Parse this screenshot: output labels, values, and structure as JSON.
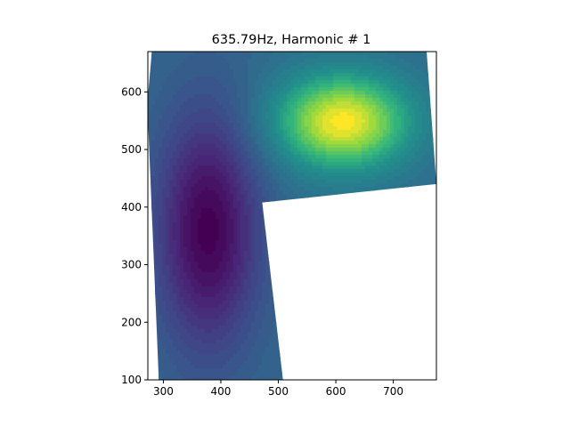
{
  "chart_data": {
    "type": "heatmap",
    "subtype": "filled-contour",
    "title": "635.79Hz, Harmonic # 1",
    "xlabel": "",
    "ylabel": "",
    "xlim": [
      273,
      775
    ],
    "ylim": [
      100,
      670
    ],
    "xticks": [
      300,
      400,
      500,
      600,
      700
    ],
    "yticks": [
      100,
      200,
      300,
      400,
      500,
      600
    ],
    "xtick_labels": [
      "300",
      "400",
      "500",
      "600",
      "700"
    ],
    "ytick_labels": [
      "100",
      "200",
      "300",
      "400",
      "500",
      "600"
    ],
    "colormap": "viridis",
    "colorbar": false,
    "legend": false,
    "grid": false,
    "contour_levels": 30,
    "domain_polygon": [
      [
        280,
        670
      ],
      [
        758,
        670
      ],
      [
        775,
        440
      ],
      [
        472,
        408
      ],
      [
        508,
        100
      ],
      [
        292,
        100
      ],
      [
        272,
        580
      ]
    ],
    "field_peaks": [
      {
        "label": "minimum",
        "x": 378,
        "y": 360,
        "level": 0.0
      },
      {
        "label": "maximum",
        "x": 612,
        "y": 548,
        "level": 1.0
      }
    ]
  }
}
